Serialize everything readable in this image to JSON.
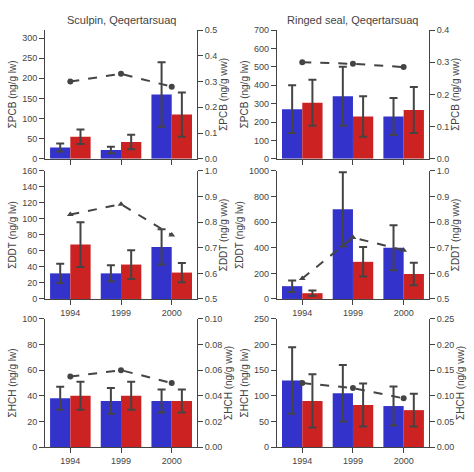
{
  "chart_data": [
    {
      "type": "bar",
      "title": "Sculpin, Qeqertarsuaq",
      "categories": [
        "1994",
        "1999",
        "2000"
      ],
      "ylabel": "ΣPCB (ng/g lw)",
      "y2label": "ΣPCB (ng/g ww)",
      "ylim": [
        0,
        320
      ],
      "yticks": [
        0,
        50,
        100,
        150,
        200,
        250,
        300
      ],
      "y2lim": [
        0,
        0.5
      ],
      "y2ticks": [
        {
          "value": 0,
          "label": "0.0"
        },
        0.1,
        0.2,
        0.3,
        0.4,
        0.5
      ],
      "grid": false,
      "tick_labels": "y",
      "series": [
        {
          "type": "bar",
          "color": "#3333cc",
          "values": [
            28,
            22,
            160
          ],
          "errors": [
            10,
            8,
            80
          ]
        },
        {
          "type": "bar",
          "color": "#cc2222",
          "values": [
            55,
            42,
            110
          ],
          "errors": [
            18,
            18,
            55
          ]
        },
        {
          "type": "line",
          "axis": "y2",
          "color": "#444444",
          "marker": "circle",
          "line_style": "dashed",
          "values": [
            0.3,
            0.33,
            0.28
          ]
        }
      ]
    },
    {
      "type": "bar",
      "title": "Ringed seal, Qeqertarsuaq",
      "categories": [
        "1994",
        "1999",
        "2000"
      ],
      "ylabel": "ΣPCB (ng/g lw)",
      "y2label": "ΣPCB (ng/g ww)",
      "ylim": [
        0,
        700
      ],
      "yticks": [
        0,
        100,
        200,
        300,
        400,
        500,
        600,
        700
      ],
      "y2lim": [
        0,
        0.4
      ],
      "y2ticks": [
        {
          "value": 0,
          "label": "0.0"
        },
        0.1,
        0.2,
        0.3,
        0.4
      ],
      "grid": false,
      "tick_labels": "y",
      "series": [
        {
          "type": "bar",
          "color": "#3333cc",
          "values": [
            270,
            340,
            230
          ],
          "errors": [
            130,
            160,
            100
          ]
        },
        {
          "type": "bar",
          "color": "#cc2222",
          "values": [
            305,
            230,
            265
          ],
          "errors": [
            125,
            110,
            125
          ]
        },
        {
          "type": "line",
          "axis": "y2",
          "color": "#444444",
          "marker": "circle",
          "line_style": "dashed",
          "values": [
            0.3,
            0.295,
            0.285
          ]
        }
      ]
    },
    {
      "type": "bar",
      "categories": [
        "1994",
        "1999",
        "2000"
      ],
      "ylabel": "ΣDDT (ng/g lw)",
      "y2label": "ΣDDT (ng/g ww)",
      "ylim": [
        0,
        160
      ],
      "yticks": [
        0,
        20,
        40,
        60,
        80,
        100,
        120,
        140,
        160
      ],
      "y2lim": [
        0.5,
        1.0
      ],
      "y2ticks": [
        0.5,
        0.6,
        0.7,
        0.8,
        0.9,
        {
          "value": 1.0,
          "label": "1.0"
        }
      ],
      "grid": false,
      "series": [
        {
          "type": "bar",
          "color": "#3333cc",
          "values": [
            32,
            32,
            65
          ],
          "errors": [
            12,
            10,
            22
          ]
        },
        {
          "type": "bar",
          "color": "#cc2222",
          "values": [
            68,
            43,
            33
          ],
          "errors": [
            28,
            18,
            12
          ]
        },
        {
          "type": "line",
          "axis": "y2",
          "color": "#444444",
          "marker": "triangle",
          "line_style": "dashed",
          "values": [
            0.83,
            0.87,
            0.75
          ]
        }
      ]
    },
    {
      "type": "bar",
      "categories": [
        "1994",
        "1999",
        "2000"
      ],
      "ylabel": "ΣDDT (ng/g lw)",
      "y2label": "ΣDDT (ng/g ww)",
      "ylim": [
        0,
        1000
      ],
      "yticks": [
        0,
        200,
        400,
        600,
        800,
        1000
      ],
      "y2lim": [
        0.5,
        1.0
      ],
      "y2ticks": [
        0.5,
        0.6,
        0.7,
        0.8,
        0.9,
        {
          "value": 1.0,
          "label": "1.0"
        }
      ],
      "grid": false,
      "series": [
        {
          "type": "bar",
          "color": "#3333cc",
          "values": [
            100,
            700,
            400
          ],
          "errors": [
            45,
            290,
            175
          ]
        },
        {
          "type": "bar",
          "color": "#cc2222",
          "values": [
            45,
            290,
            195
          ],
          "errors": [
            22,
            115,
            88
          ]
        },
        {
          "type": "line",
          "axis": "y2",
          "color": "#444444",
          "marker": "triangle",
          "line_style": "dashed",
          "values": [
            0.58,
            0.74,
            0.69
          ]
        }
      ]
    },
    {
      "type": "bar",
      "categories": [
        "1994",
        "1999",
        "2000"
      ],
      "ylabel": "ΣHCH (ng/g lw)",
      "y2label": "ΣHCH (ng/g ww)",
      "ylim": [
        0,
        100
      ],
      "yticks": [
        0,
        20,
        40,
        60,
        80,
        100
      ],
      "y2lim": [
        0,
        0.1
      ],
      "y2ticks": [
        {
          "value": 0,
          "label": "0.00"
        },
        0.02,
        0.04,
        0.06,
        0.08,
        {
          "value": 0.1,
          "label": "0.10"
        }
      ],
      "grid": false,
      "series": [
        {
          "type": "bar",
          "color": "#3333cc",
          "values": [
            38,
            36,
            36
          ],
          "errors": [
            9,
            10,
            9
          ]
        },
        {
          "type": "bar",
          "color": "#cc2222",
          "values": [
            40,
            40,
            36
          ],
          "errors": [
            11,
            11,
            9
          ]
        },
        {
          "type": "line",
          "axis": "y2",
          "color": "#444444",
          "marker": "circle",
          "line_style": "dashed",
          "values": [
            0.055,
            0.06,
            0.05
          ]
        }
      ]
    },
    {
      "type": "bar",
      "categories": [
        "1994",
        "1999",
        "2000"
      ],
      "ylabel": "ΣHCH (ng/g lw)",
      "y2label": "ΣHCH (ng/g ww)",
      "ylim": [
        0,
        250
      ],
      "yticks": [
        0,
        50,
        100,
        150,
        200,
        250
      ],
      "y2lim": [
        0,
        0.25
      ],
      "y2ticks": [
        {
          "value": 0,
          "label": "0.00"
        },
        0.05,
        {
          "value": 0.1,
          "label": "0.10"
        },
        0.15,
        {
          "value": 0.2,
          "label": "0.20"
        },
        0.25
      ],
      "grid": false,
      "series": [
        {
          "type": "bar",
          "color": "#3333cc",
          "values": [
            130,
            105,
            80
          ],
          "errors": [
            65,
            55,
            38
          ]
        },
        {
          "type": "bar",
          "color": "#cc2222",
          "values": [
            90,
            82,
            72
          ],
          "errors": [
            52,
            42,
            32
          ]
        },
        {
          "type": "line",
          "axis": "y2",
          "color": "#444444",
          "marker": "circle",
          "line_style": "dashed",
          "values": [
            0.125,
            0.115,
            0.095
          ]
        }
      ]
    }
  ]
}
